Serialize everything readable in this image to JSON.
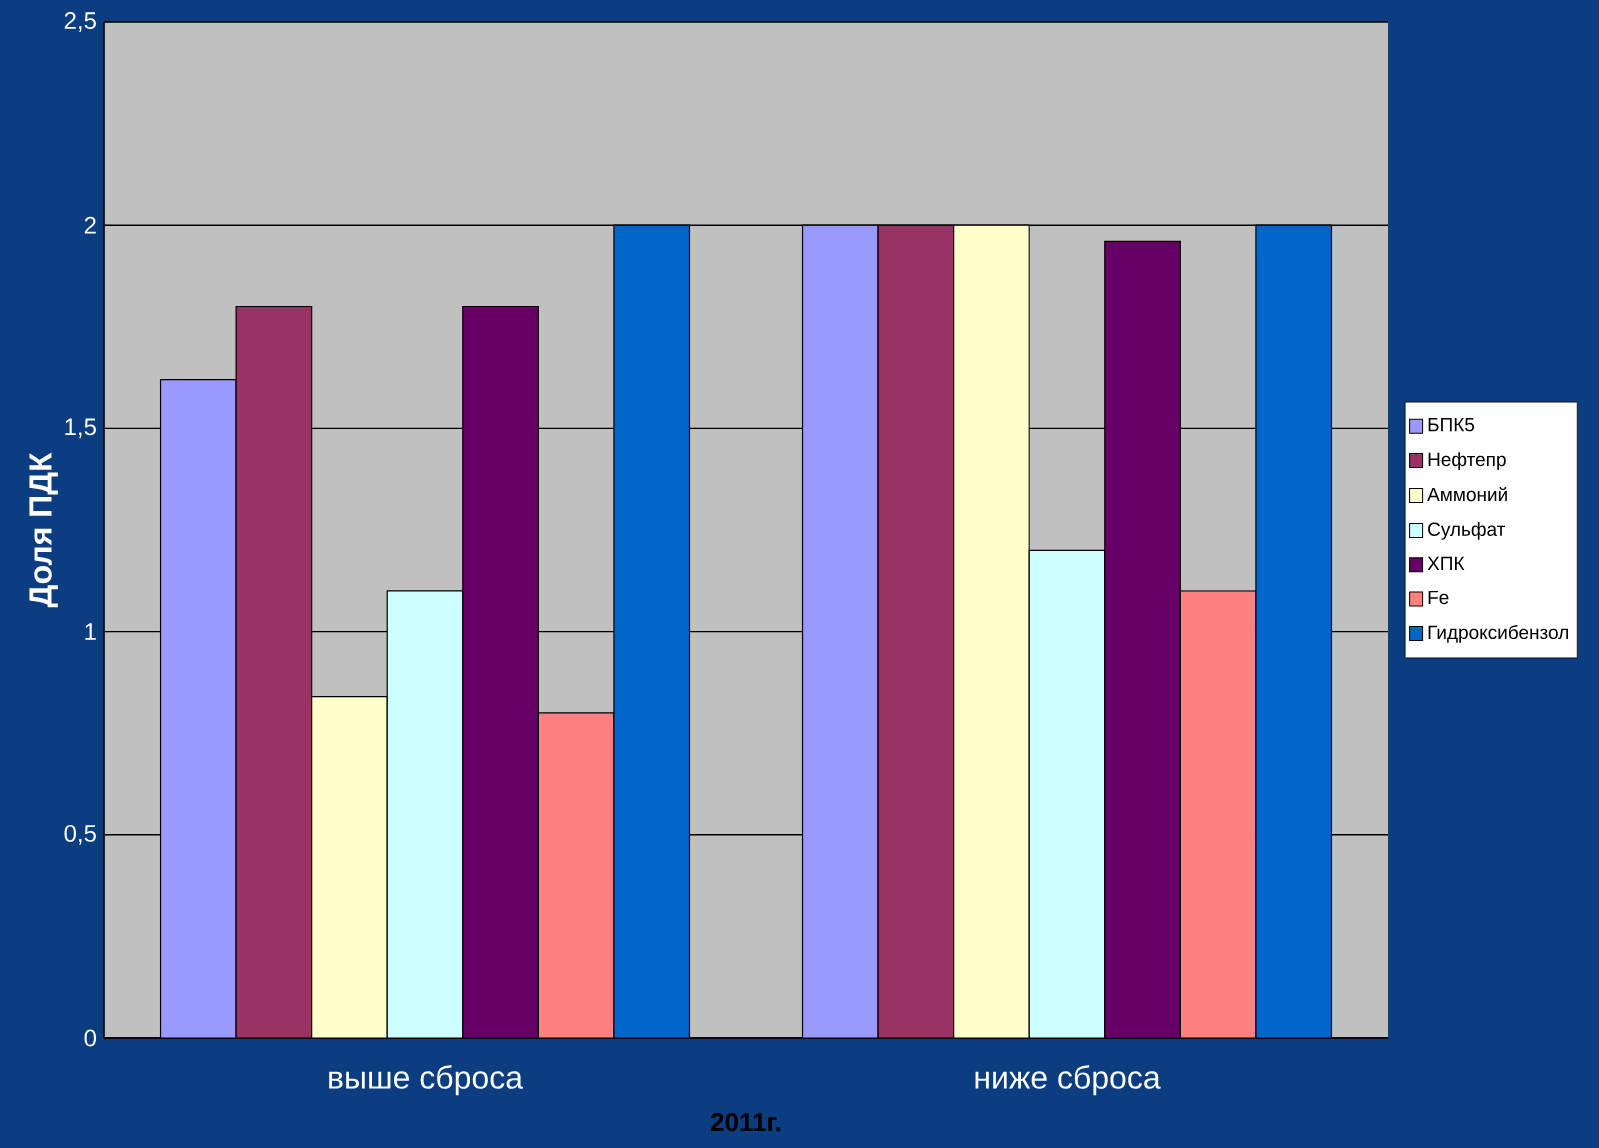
{
  "chart_data": {
    "type": "bar",
    "ylabel": "Доля ПДК",
    "xlabel": "2011г.",
    "categories": [
      "выше сброса",
      "ниже сброса"
    ],
    "series": [
      {
        "name": "БПК5",
        "color": "#9999ff",
        "values": [
          1.62,
          2.0
        ]
      },
      {
        "name": "Нефтепр",
        "color": "#993366",
        "values": [
          1.8,
          2.0
        ]
      },
      {
        "name": "Аммоний",
        "color": "#ffffcc",
        "values": [
          0.84,
          2.0
        ]
      },
      {
        "name": "Сульфат",
        "color": "#ccffff",
        "values": [
          1.1,
          1.2
        ]
      },
      {
        "name": "ХПК",
        "color": "#660066",
        "values": [
          1.8,
          1.96
        ]
      },
      {
        "name": "Fe",
        "color": "#ff8080",
        "values": [
          0.8,
          1.1
        ]
      },
      {
        "name": "Гидроксибензол",
        "color": "#0066cc",
        "values": [
          2.0,
          2.0
        ]
      }
    ],
    "ylim": [
      0,
      2.5
    ],
    "yticks": [
      0,
      {
        "value": 0.5,
        "label": "0,5"
      },
      1,
      {
        "value": 1.5,
        "label": "1,5"
      },
      2,
      {
        "value": 2.5,
        "label": "2,5"
      }
    ],
    "grid": "y",
    "legend": "right"
  }
}
